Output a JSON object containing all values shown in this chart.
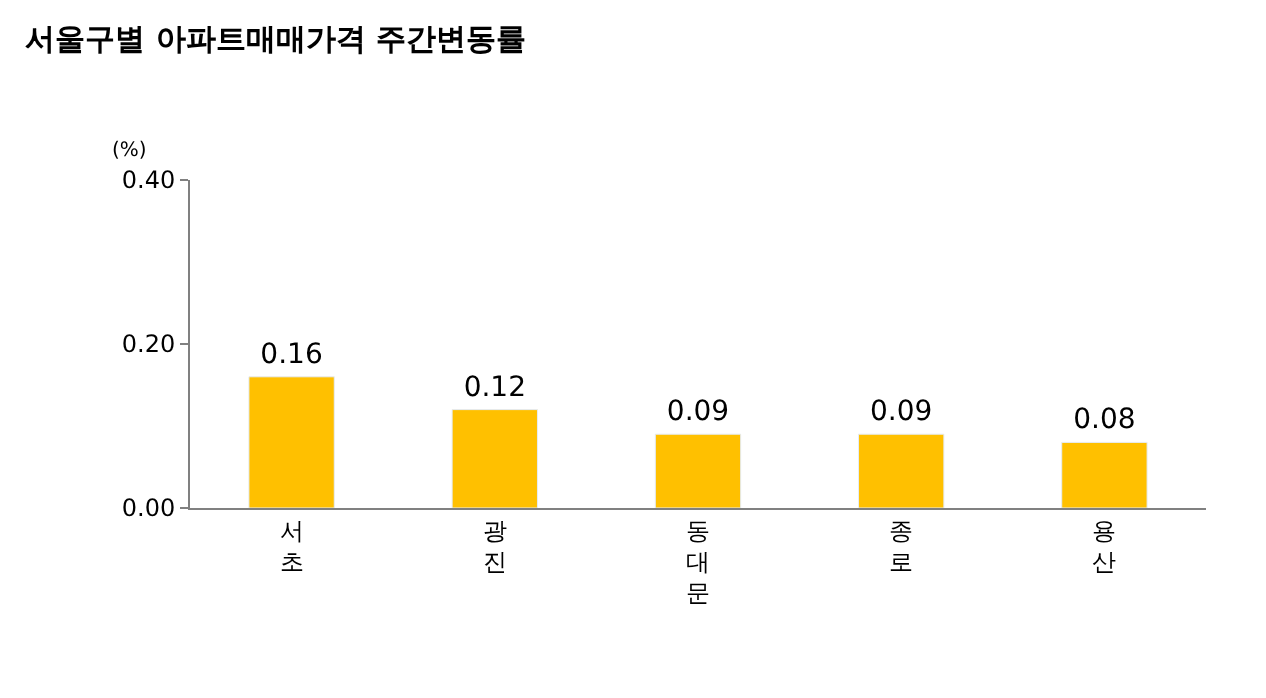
{
  "chart_data": {
    "type": "bar",
    "title": "서울구별 아파트매매가격 주간변동률",
    "ylabel": "(%)",
    "categories": [
      "서초",
      "광진",
      "동대문",
      "종로",
      "용산"
    ],
    "values": [
      0.16,
      0.12,
      0.09,
      0.09,
      0.08
    ],
    "color": "#ffc000",
    "data_labels": true,
    "ylim": [
      0,
      0.4
    ],
    "yticks": [
      {
        "value": 0,
        "label": "0.00"
      },
      {
        "value": 0.2,
        "label": "0.20"
      },
      {
        "value": 0.4,
        "label": "0.40"
      }
    ],
    "legend": false
  }
}
